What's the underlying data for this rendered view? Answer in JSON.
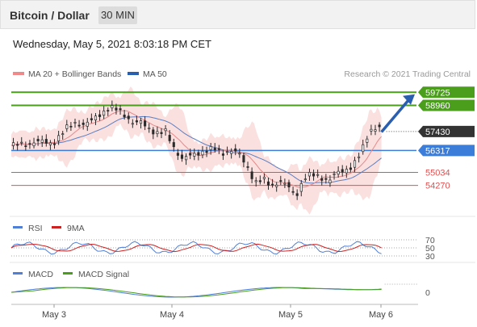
{
  "header": {
    "title": "Bitcoin / Dollar",
    "timeframe": "30 MIN"
  },
  "datetime": "Wednesday, May 5, 2021 8:03:18 PM CET",
  "legend": {
    "ma20": "MA 20 + Bollinger Bands",
    "ma50": "MA 50",
    "credit": "Research © 2021 Trading Central"
  },
  "colors": {
    "green": "#4a9e1c",
    "blue": "#3b7dd8",
    "red": "#e05050",
    "candle": "#2a2a2a",
    "band": "#f9d6d6",
    "ma50": "#5b7fc2",
    "arrow": "#2a5fb0",
    "rsi": "#4f7fd6",
    "ma9": "#cc2222",
    "macd": "#4f7fd6",
    "signal": "#4a9e1c"
  },
  "chart_data": {
    "type": "line",
    "x_ticks": [
      "May 3",
      "May 4",
      "May 5",
      "May 6"
    ],
    "price_range": [
      52600,
      60400
    ],
    "levels": [
      {
        "value": 59725,
        "label": "59725",
        "kind": "resistance"
      },
      {
        "value": 58960,
        "label": "58960",
        "kind": "resistance"
      },
      {
        "value": 57430,
        "label": "57430",
        "kind": "last"
      },
      {
        "value": 56317,
        "label": "56317",
        "kind": "pivot"
      },
      {
        "value": 55034,
        "label": "55034",
        "kind": "support"
      },
      {
        "value": 54270,
        "label": "54270",
        "kind": "support"
      }
    ],
    "price_path": [
      [
        0,
        56600
      ],
      [
        0.02,
        56650
      ],
      [
        0.04,
        56700
      ],
      [
        0.06,
        56850
      ],
      [
        0.08,
        56800
      ],
      [
        0.1,
        56700
      ],
      [
        0.12,
        57200
      ],
      [
        0.14,
        57700
      ],
      [
        0.16,
        58000
      ],
      [
        0.18,
        57800
      ],
      [
        0.2,
        58100
      ],
      [
        0.22,
        58500
      ],
      [
        0.24,
        58800
      ],
      [
        0.26,
        58700
      ],
      [
        0.28,
        58400
      ],
      [
        0.3,
        57900
      ],
      [
        0.32,
        57950
      ],
      [
        0.34,
        57600
      ],
      [
        0.36,
        57300
      ],
      [
        0.38,
        57400
      ],
      [
        0.4,
        56500
      ],
      [
        0.42,
        55800
      ],
      [
        0.44,
        56000
      ],
      [
        0.46,
        56200
      ],
      [
        0.48,
        56300
      ],
      [
        0.5,
        56400
      ],
      [
        0.52,
        56200
      ],
      [
        0.54,
        56300
      ],
      [
        0.56,
        56100
      ],
      [
        0.58,
        55400
      ],
      [
        0.6,
        54400
      ],
      [
        0.62,
        54600
      ],
      [
        0.64,
        54300
      ],
      [
        0.66,
        54500
      ],
      [
        0.68,
        54200
      ],
      [
        0.7,
        53700
      ],
      [
        0.72,
        54700
      ],
      [
        0.74,
        54900
      ],
      [
        0.76,
        54800
      ],
      [
        0.78,
        54500
      ],
      [
        0.8,
        55000
      ],
      [
        0.82,
        55200
      ],
      [
        0.84,
        55400
      ],
      [
        0.86,
        56200
      ],
      [
        0.88,
        57500
      ],
      [
        0.9,
        57700
      ],
      [
        0.91,
        57500
      ]
    ],
    "forecast": {
      "from": [
        0.91,
        57400
      ],
      "to": [
        1.0,
        59700
      ]
    },
    "rsi": {
      "label": "RSI",
      "ma_label": "9MA",
      "ticks": [
        70,
        50,
        30
      ]
    },
    "macd": {
      "label": "MACD",
      "signal_label": "MACD Signal",
      "ticks": [
        0
      ]
    }
  }
}
